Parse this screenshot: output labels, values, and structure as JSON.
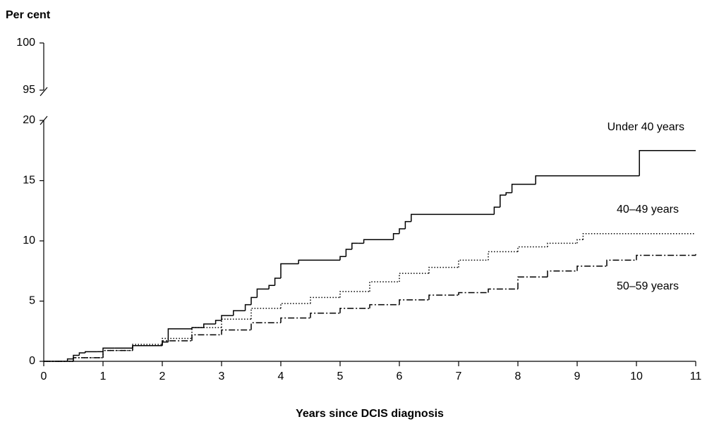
{
  "chart_data": {
    "type": "step",
    "y_label": "Per cent",
    "x_label": "Years since DCIS diagnosis",
    "xlim": [
      0,
      11
    ],
    "xticks": [
      0,
      1,
      2,
      3,
      4,
      5,
      6,
      7,
      8,
      9,
      10,
      11
    ],
    "ylim": [
      0,
      20
    ],
    "yticks": [
      0,
      5,
      10,
      15,
      20
    ],
    "ylim_upper": [
      95,
      100
    ],
    "yticks_upper": [
      95,
      100
    ],
    "series": [
      {
        "name": "Under 40 years",
        "color": "#000000",
        "dash": "solid",
        "x": [
          0,
          0.4,
          0.5,
          0.6,
          0.7,
          0.9,
          1.0,
          1.2,
          1.5,
          2.0,
          2.1,
          2.5,
          2.7,
          2.9,
          3.0,
          3.2,
          3.4,
          3.5,
          3.6,
          3.8,
          3.9,
          4.0,
          4.3,
          5.0,
          5.1,
          5.2,
          5.3,
          5.4,
          5.9,
          6.0,
          6.1,
          6.2,
          7.6,
          7.7,
          7.8,
          7.9,
          8.3,
          10.05,
          11.0
        ],
        "values": [
          0,
          0.2,
          0.5,
          0.7,
          0.8,
          0.8,
          1.1,
          1.1,
          1.3,
          1.6,
          2.7,
          2.8,
          3.1,
          3.4,
          3.8,
          4.2,
          4.7,
          5.3,
          6.0,
          6.3,
          6.9,
          8.1,
          8.4,
          8.7,
          9.3,
          9.8,
          9.8,
          10.1,
          10.6,
          11.0,
          11.6,
          12.2,
          12.8,
          13.8,
          14.0,
          14.7,
          15.4,
          17.5,
          17.5
        ]
      },
      {
        "name": "40–49 years",
        "color": "#000000",
        "dash": "dotted",
        "x": [
          0,
          0.5,
          1,
          1.5,
          2,
          2.5,
          3,
          3.5,
          4,
          4.5,
          5,
          5.5,
          6,
          6.5,
          7,
          7.5,
          8,
          8.5,
          9,
          9.1,
          10,
          11
        ],
        "values": [
          0,
          0.3,
          0.9,
          1.4,
          1.9,
          2.8,
          3.5,
          4.4,
          4.8,
          5.3,
          5.8,
          6.6,
          7.3,
          7.8,
          8.4,
          9.1,
          9.5,
          9.8,
          10.1,
          10.6,
          10.6,
          10.6
        ]
      },
      {
        "name": "50–59 years",
        "color": "#000000",
        "dash": "dashdot",
        "x": [
          0,
          0.5,
          1,
          1.5,
          2,
          2.5,
          3,
          3.5,
          4,
          4.5,
          5,
          5.5,
          6,
          6.5,
          7,
          7.5,
          8,
          8.5,
          9,
          9.5,
          10,
          11
        ],
        "values": [
          0,
          0.3,
          0.9,
          1.3,
          1.7,
          2.2,
          2.6,
          3.2,
          3.6,
          4.0,
          4.4,
          4.7,
          5.1,
          5.5,
          5.7,
          6.0,
          7.0,
          7.5,
          7.9,
          8.4,
          8.8,
          8.9
        ]
      }
    ]
  }
}
